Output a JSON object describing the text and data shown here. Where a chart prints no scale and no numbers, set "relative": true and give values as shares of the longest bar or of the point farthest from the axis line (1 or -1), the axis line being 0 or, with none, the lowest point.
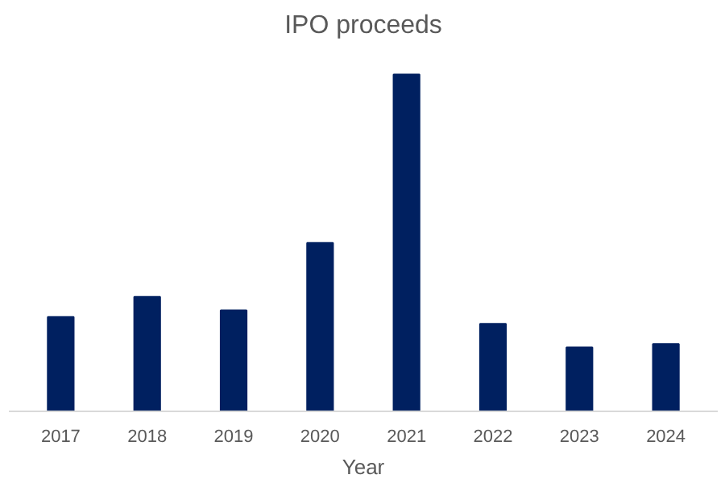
{
  "chart_data": {
    "type": "bar",
    "title": "IPO proceeds",
    "xlabel": "Year",
    "relative": true,
    "categories": [
      "2017",
      "2018",
      "2019",
      "2020",
      "2021",
      "2022",
      "2023",
      "2024"
    ],
    "values": [
      0.28,
      0.34,
      0.3,
      0.5,
      1,
      0.26,
      0.19,
      0.2
    ],
    "color": "#002060"
  }
}
